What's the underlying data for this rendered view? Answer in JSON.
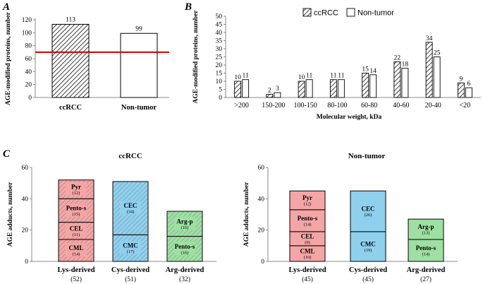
{
  "panel_a": {
    "label": "A",
    "chart_data": {
      "type": "bar",
      "categories": [
        "ccRCC",
        "Non-tumor"
      ],
      "values": [
        113,
        99
      ],
      "hatched": [
        true,
        false
      ],
      "ylabel": "AGE-modified proteins, number",
      "ylim": [
        0,
        120
      ],
      "yticks": [
        0,
        20,
        40,
        60,
        80,
        100,
        120
      ],
      "reference_line": 70,
      "reference_color": "#cc0000"
    }
  },
  "panel_b": {
    "label": "B",
    "chart_data": {
      "type": "bar",
      "categories": [
        ">200",
        "150-200",
        "100-150",
        "80-100",
        "60-80",
        "40-60",
        "20-40",
        "<20"
      ],
      "series": [
        {
          "name": "ccRCC",
          "values": [
            10,
            2,
            10,
            11,
            15,
            22,
            34,
            9
          ]
        },
        {
          "name": "Non-tumor",
          "values": [
            11,
            3,
            11,
            11,
            14,
            18,
            25,
            6
          ]
        }
      ],
      "xlabel": "Molecular weight, kDa",
      "ylabel": "AGE-modified proteins, number",
      "ylim": [
        0,
        50
      ],
      "yticks": [
        0,
        5,
        10,
        15,
        20,
        25,
        30,
        35,
        40,
        45,
        50
      ],
      "legend": "top-right"
    }
  },
  "panel_c": {
    "label": "C",
    "chart_data": [
      {
        "type": "bar",
        "stacked": true,
        "title": "ccRCC",
        "ylabel": "AGE adducts, number",
        "ylim": [
          0,
          60
        ],
        "yticks": [
          0,
          20,
          40,
          60
        ],
        "hatched": true,
        "categories": [
          "Lys-derived",
          "Cys-derived",
          "Arg-derived"
        ],
        "totals": [
          "(52)",
          "(51)",
          "(32)"
        ],
        "stacks": [
          {
            "color": "#f4a5a5",
            "segments": [
              {
                "name": "CML",
                "value": 14,
                "label": "(14)"
              },
              {
                "name": "CEL",
                "value": 11,
                "label": "(11)"
              },
              {
                "name": "Pento-s",
                "value": 15,
                "label": "(15)"
              },
              {
                "name": "Pyr",
                "value": 12,
                "label": "(12)"
              }
            ]
          },
          {
            "color": "#8fd0ee",
            "segments": [
              {
                "name": "CMC",
                "value": 17,
                "label": "(17)"
              },
              {
                "name": "CEC",
                "value": 34,
                "label": "(34)"
              }
            ]
          },
          {
            "color": "#9ee0a3",
            "segments": [
              {
                "name": "Pento-s",
                "value": 16,
                "label": "(16)"
              },
              {
                "name": "Arg-p",
                "value": 16,
                "label": "(16)"
              }
            ]
          }
        ]
      },
      {
        "type": "bar",
        "stacked": true,
        "title": "Non-tumor",
        "ylabel": "AGE adducts, number",
        "ylim": [
          0,
          60
        ],
        "yticks": [
          0,
          20,
          40,
          60
        ],
        "hatched": false,
        "categories": [
          "Lys-derived",
          "Cys-derived",
          "Arg-derived"
        ],
        "totals": [
          "(45)",
          "(45)",
          "(27)"
        ],
        "stacks": [
          {
            "color": "#f4a5a5",
            "segments": [
              {
                "name": "CML",
                "value": 10,
                "label": "(10)"
              },
              {
                "name": "CEL",
                "value": 9,
                "label": "(9)"
              },
              {
                "name": "Pento-s",
                "value": 14,
                "label": "(14)"
              },
              {
                "name": "Pyr",
                "value": 12,
                "label": "(12)"
              }
            ]
          },
          {
            "color": "#8fd0ee",
            "segments": [
              {
                "name": "CMC",
                "value": 19,
                "label": "(19)"
              },
              {
                "name": "CEC",
                "value": 26,
                "label": "(26)"
              }
            ]
          },
          {
            "color": "#9ee0a3",
            "segments": [
              {
                "name": "Pento-s",
                "value": 14,
                "label": "(14)"
              },
              {
                "name": "Arg-p",
                "value": 13,
                "label": "(13)"
              }
            ]
          }
        ]
      }
    ]
  }
}
